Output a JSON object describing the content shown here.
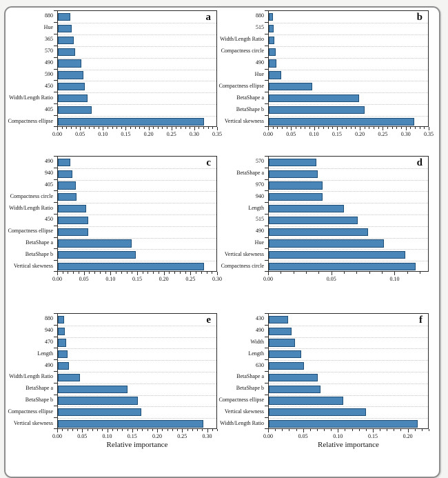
{
  "figure": {
    "bar_fill": "#4a86b8",
    "bar_border": "#1d4e78",
    "axis_color": "#2a2a2a",
    "x_axis_label": "Relative importance"
  },
  "chart_data": [
    {
      "type": "bar",
      "title": "a",
      "orientation": "horizontal",
      "categories": [
        "880",
        "Hue",
        "365",
        "570",
        "490",
        "590",
        "450",
        "Width/Length Ratio",
        "405",
        "Compactness ellipse"
      ],
      "values": [
        0.028,
        0.03,
        0.035,
        0.038,
        0.051,
        0.056,
        0.059,
        0.066,
        0.075,
        0.323
      ],
      "xlabel": "",
      "xlim": [
        0,
        0.35
      ],
      "tick_values": [
        0,
        0.05,
        0.1,
        0.15,
        0.2,
        0.25,
        0.3,
        0.35
      ],
      "tick_labels": [
        "0.00",
        "0.05",
        "0.10",
        "0.15",
        "0.20",
        "0.25",
        "0.30",
        "0.35"
      ],
      "minor_step": 0.01,
      "grid": "dotted-horizontal"
    },
    {
      "type": "bar",
      "title": "b",
      "orientation": "horizontal",
      "categories": [
        "880",
        "515",
        "Width/Length Ratio",
        "Compactness circle",
        "490",
        "Hue",
        "Compactness ellipse",
        "BetaShape a",
        "BetaShape b",
        "Vertical skewness"
      ],
      "values": [
        0.009,
        0.011,
        0.012,
        0.015,
        0.017,
        0.028,
        0.095,
        0.199,
        0.211,
        0.32
      ],
      "xlabel": "",
      "xlim": [
        0,
        0.35
      ],
      "tick_values": [
        0,
        0.05,
        0.1,
        0.15,
        0.2,
        0.25,
        0.3,
        0.35
      ],
      "tick_labels": [
        "0.00",
        "0.05",
        "0.10",
        "0.15",
        "0.20",
        "0.25",
        "0.30",
        "0.35"
      ],
      "minor_step": 0.01,
      "grid": "dotted-horizontal"
    },
    {
      "type": "bar",
      "title": "c",
      "orientation": "horizontal",
      "categories": [
        "490",
        "940",
        "405",
        "Compactness circle",
        "Width/Length Ratio",
        "450",
        "Compactness ellipse",
        "BetaShape a",
        "BetaShape b",
        "Vertical skewness"
      ],
      "values": [
        0.023,
        0.027,
        0.034,
        0.035,
        0.054,
        0.057,
        0.058,
        0.139,
        0.147,
        0.276
      ],
      "xlabel": "",
      "xlim": [
        0,
        0.3
      ],
      "tick_values": [
        0,
        0.05,
        0.1,
        0.15,
        0.2,
        0.25,
        0.3
      ],
      "tick_labels": [
        "0.00",
        "0.05",
        "0.10",
        "0.15",
        "0.20",
        "0.25",
        "0.30"
      ],
      "minor_step": 0.01,
      "grid": "dotted-horizontal"
    },
    {
      "type": "bar",
      "title": "d",
      "orientation": "horizontal",
      "categories": [
        "570",
        "BetaShape a",
        "970",
        "940",
        "Length",
        "515",
        "490",
        "Hue",
        "Vertical skewness",
        "Compactness circle"
      ],
      "values": [
        0.038,
        0.039,
        0.043,
        0.043,
        0.06,
        0.071,
        0.079,
        0.092,
        0.109,
        0.117
      ],
      "xlabel": "",
      "xlim": [
        0,
        0.127
      ],
      "tick_values": [
        0,
        0.05,
        0.1
      ],
      "tick_labels": [
        "0.00",
        "0.05",
        "0.10"
      ],
      "minor_step": 0.01,
      "grid": "dotted-horizontal"
    },
    {
      "type": "bar",
      "title": "e",
      "orientation": "horizontal",
      "categories": [
        "880",
        "940",
        "470",
        "Length",
        "490",
        "Width/Length Ratio",
        "BetaShape a",
        "BetaShape b",
        "Compactness ellipse",
        "Vertical skewness"
      ],
      "values": [
        0.012,
        0.014,
        0.017,
        0.019,
        0.022,
        0.044,
        0.141,
        0.161,
        0.169,
        0.293
      ],
      "xlabel": "Relative importance",
      "xlim": [
        0,
        0.32
      ],
      "tick_values": [
        0,
        0.05,
        0.1,
        0.15,
        0.2,
        0.25,
        0.3
      ],
      "tick_labels": [
        "0.00",
        "0.05",
        "0.10",
        "0.15",
        "0.20",
        "0.25",
        "0.30"
      ],
      "minor_step": 0.01,
      "grid": "dotted-horizontal"
    },
    {
      "type": "bar",
      "title": "f",
      "orientation": "horizontal",
      "categories": [
        "430",
        "490",
        "Width",
        "Length",
        "630",
        "BetaShape a",
        "BetaShape b",
        "Compactness ellipse",
        "Vertical skewness",
        "Width/Length Ratio"
      ],
      "values": [
        0.028,
        0.033,
        0.038,
        0.047,
        0.051,
        0.071,
        0.075,
        0.108,
        0.14,
        0.215
      ],
      "xlabel": "Relative importance",
      "xlim": [
        0,
        0.23
      ],
      "tick_values": [
        0,
        0.05,
        0.1,
        0.15,
        0.2
      ],
      "tick_labels": [
        "0.00",
        "0.05",
        "0.10",
        "0.15",
        "0.20"
      ],
      "minor_step": 0.01,
      "grid": "dotted-horizontal"
    }
  ]
}
